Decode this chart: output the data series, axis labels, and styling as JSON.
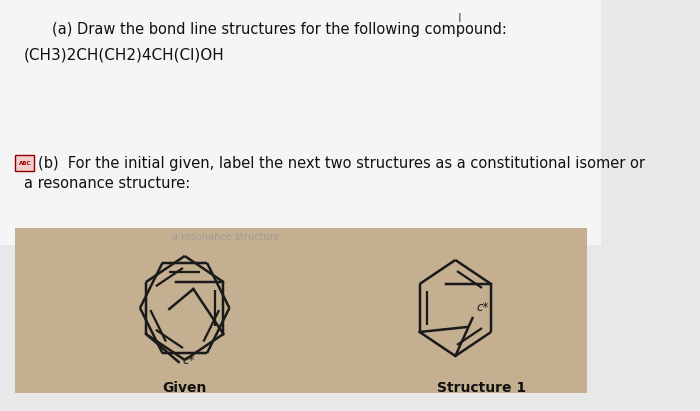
{
  "bg_color": "#e8e8e8",
  "white_color": "#f5f5f5",
  "tan_color": "#c4af90",
  "line_color": "#1a1a1a",
  "text_color": "#111111",
  "abc_bg": "#f5cccc",
  "abc_border": "#8B0000",
  "abc_text_color": "#8B0000",
  "watermark_color": "#999999",
  "page_marker": "I",
  "text_a": "(a) Draw the bond line structures for the following compound:",
  "formula": "(CH3)2CH(CH2)4CH(Cl)OH",
  "text_b1": "(b)  For the initial given, label the next two structures as a constitutional isomer or",
  "text_b2": "a resonance structure:",
  "watermark": "a resonance structure.",
  "label_given": "Given",
  "label_s1": "Structure 1",
  "c_star": "c*",
  "lw": 1.5,
  "ring_r": 0.18
}
